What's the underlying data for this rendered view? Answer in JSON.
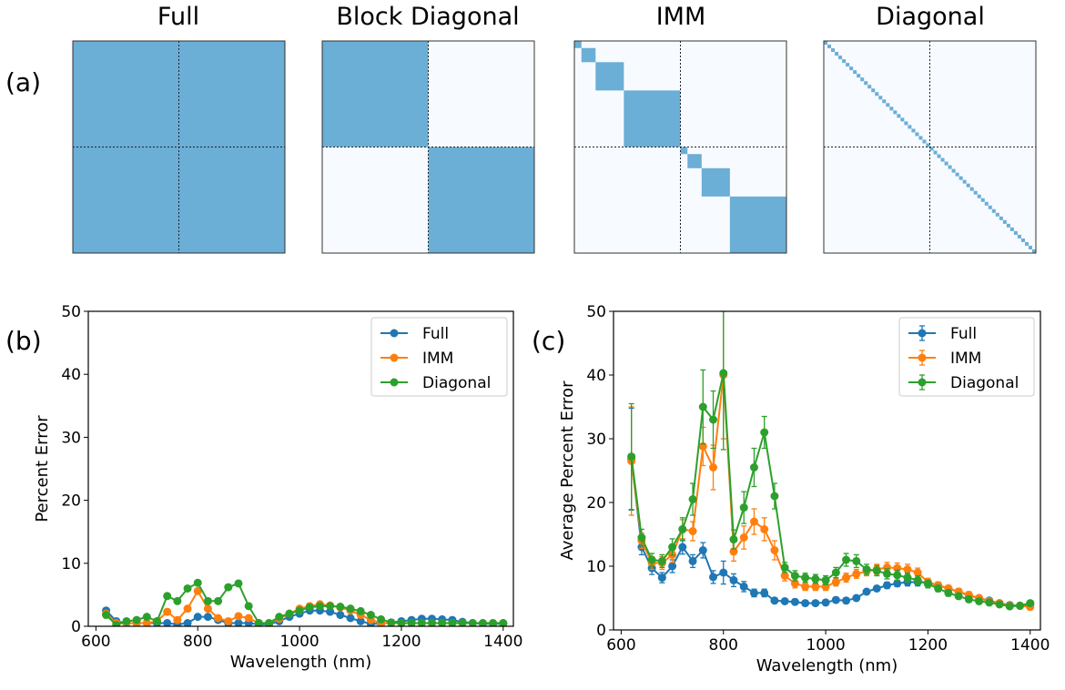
{
  "panel_labels": {
    "a": "(a)",
    "b": "(b)",
    "c": "(c)"
  },
  "matrices": [
    {
      "title": "Full",
      "pattern": "full",
      "blocks": [
        1
      ]
    },
    {
      "title": "Block Diagonal",
      "pattern": "block",
      "blocks": [
        1,
        1
      ]
    },
    {
      "title": "IMM",
      "pattern": "imm",
      "blocks": [
        1,
        2,
        4,
        8,
        1,
        2,
        4,
        8
      ]
    },
    {
      "title": "Diagonal",
      "pattern": "diag",
      "blocks": []
    }
  ],
  "colors": {
    "Full": "#1f77b4",
    "IMM": "#ff7f0e",
    "Diagonal": "#2ca02c",
    "matrix_fill": "#6baed6",
    "matrix_bg": "#f7fbff"
  },
  "chart_data": [
    {
      "type": "line",
      "panel": "(b)",
      "xlabel": "Wavelength (nm)",
      "ylabel": "Percent Error",
      "xlim": [
        585,
        1420
      ],
      "ylim": [
        0,
        50
      ],
      "xticks": [
        600,
        800,
        1000,
        1200,
        1400
      ],
      "yticks": [
        0,
        10,
        20,
        30,
        40,
        50
      ],
      "legend": "top-right",
      "x": [
        620,
        640,
        660,
        680,
        700,
        720,
        740,
        760,
        780,
        800,
        820,
        840,
        860,
        880,
        900,
        920,
        940,
        960,
        980,
        1000,
        1020,
        1040,
        1060,
        1080,
        1100,
        1120,
        1140,
        1160,
        1180,
        1200,
        1220,
        1240,
        1260,
        1280,
        1300,
        1320,
        1340,
        1360,
        1380,
        1400
      ],
      "series": [
        {
          "name": "Full",
          "values": [
            2.5,
            0.8,
            0.5,
            0.5,
            0.5,
            0.5,
            0.5,
            0.3,
            0.5,
            1.5,
            1.5,
            1.0,
            0.5,
            0.5,
            0.5,
            0.3,
            0.3,
            0.8,
            1.5,
            2.0,
            2.5,
            2.5,
            2.3,
            1.8,
            1.3,
            0.8,
            0.4,
            0.4,
            0.6,
            0.8,
            1.0,
            1.2,
            1.2,
            1.1,
            1.0,
            0.7,
            0.5,
            0.4,
            0.4,
            0.4
          ]
        },
        {
          "name": "IMM",
          "values": [
            2.0,
            0.5,
            0.5,
            0.5,
            0.5,
            0.8,
            2.3,
            1.0,
            2.8,
            5.6,
            2.8,
            1.3,
            0.8,
            1.6,
            1.3,
            0.5,
            0.5,
            1.2,
            2.0,
            2.8,
            3.2,
            3.5,
            3.3,
            3.0,
            2.5,
            1.8,
            1.0,
            0.5,
            0.5,
            0.5,
            0.5,
            0.5,
            0.5,
            0.5,
            0.5,
            0.5,
            0.5,
            0.5,
            0.5,
            0.5
          ]
        },
        {
          "name": "Diagonal",
          "values": [
            1.8,
            0.2,
            0.8,
            1.0,
            1.5,
            0.8,
            4.8,
            4.0,
            6.0,
            6.9,
            4.0,
            4.0,
            6.2,
            6.8,
            3.2,
            0.5,
            0.5,
            1.5,
            2.0,
            2.5,
            3.0,
            3.2,
            3.2,
            3.1,
            2.8,
            2.4,
            1.8,
            1.1,
            0.6,
            0.5,
            0.5,
            0.5,
            0.5,
            0.5,
            0.5,
            0.5,
            0.5,
            0.5,
            0.5,
            0.5
          ]
        }
      ]
    },
    {
      "type": "line",
      "panel": "(c)",
      "xlabel": "Wavelength (nm)",
      "ylabel": "Average Percent Error",
      "xlim": [
        585,
        1420
      ],
      "ylim": [
        0,
        50
      ],
      "xticks": [
        600,
        800,
        1000,
        1200,
        1400
      ],
      "yticks": [
        0,
        10,
        20,
        30,
        40,
        50
      ],
      "legend": "top-right",
      "error_bars": true,
      "x": [
        620,
        640,
        660,
        680,
        700,
        720,
        740,
        760,
        780,
        800,
        820,
        840,
        860,
        880,
        900,
        920,
        940,
        960,
        980,
        1000,
        1020,
        1040,
        1060,
        1080,
        1100,
        1120,
        1140,
        1160,
        1180,
        1200,
        1220,
        1240,
        1260,
        1280,
        1300,
        1320,
        1340,
        1360,
        1380,
        1400
      ],
      "series": [
        {
          "name": "Full",
          "values": [
            26.8,
            13.0,
            9.7,
            8.2,
            10.0,
            13.0,
            10.8,
            12.5,
            8.3,
            9.0,
            7.8,
            6.8,
            5.8,
            5.8,
            4.6,
            4.5,
            4.4,
            4.2,
            4.2,
            4.3,
            4.7,
            4.6,
            5.0,
            6.0,
            6.5,
            7.0,
            7.3,
            7.5,
            7.5,
            7.4,
            7.0,
            6.5,
            6.0,
            5.4,
            5.0,
            4.6,
            4.2,
            3.9,
            3.8,
            4.0
          ],
          "errors": [
            8.0,
            1.2,
            1.0,
            0.8,
            1.0,
            1.1,
            1.0,
            1.2,
            1.0,
            1.8,
            1.0,
            0.8,
            0.6,
            0.6,
            0.4,
            0.4,
            0.4,
            0.4,
            0.4,
            0.4,
            0.4,
            0.4,
            0.4,
            0.4,
            0.4,
            0.5,
            0.5,
            0.6,
            0.6,
            0.5,
            0.5,
            0.4,
            0.4,
            0.4,
            0.4,
            0.4,
            0.3,
            0.3,
            0.3,
            0.3
          ]
        },
        {
          "name": "IMM",
          "values": [
            26.5,
            14.0,
            10.5,
            10.5,
            11.8,
            15.8,
            15.5,
            28.8,
            25.5,
            40.0,
            12.3,
            14.5,
            17.0,
            15.8,
            12.5,
            8.5,
            7.3,
            6.8,
            6.8,
            6.8,
            7.5,
            8.2,
            8.8,
            9.2,
            9.5,
            9.8,
            9.7,
            9.5,
            9.0,
            7.5,
            7.0,
            6.5,
            6.0,
            5.5,
            5.0,
            4.5,
            4.2,
            3.8,
            3.8,
            3.6
          ],
          "errors": [
            8.5,
            1.2,
            1.0,
            1.0,
            1.2,
            1.5,
            1.5,
            3.0,
            3.5,
            10.0,
            1.5,
            1.8,
            2.0,
            1.8,
            1.5,
            0.8,
            0.7,
            0.6,
            0.6,
            0.6,
            0.6,
            0.7,
            0.7,
            0.7,
            0.8,
            0.8,
            0.8,
            0.8,
            0.7,
            0.6,
            0.5,
            0.5,
            0.5,
            0.5,
            0.4,
            0.4,
            0.4,
            0.3,
            0.3,
            0.3
          ]
        },
        {
          "name": "Diagonal",
          "values": [
            27.2,
            14.5,
            11.0,
            10.8,
            13.0,
            15.8,
            20.5,
            35.0,
            33.0,
            40.3,
            14.2,
            19.2,
            25.5,
            31.0,
            21.0,
            9.8,
            8.5,
            8.2,
            8.0,
            7.8,
            9.0,
            11.0,
            10.8,
            9.5,
            9.3,
            8.8,
            8.6,
            8.2,
            7.8,
            7.2,
            6.5,
            5.8,
            5.3,
            4.8,
            4.5,
            4.3,
            4.0,
            3.7,
            3.8,
            4.2
          ],
          "errors": [
            8.3,
            1.3,
            1.0,
            1.0,
            1.3,
            1.8,
            2.5,
            5.8,
            4.5,
            12.0,
            1.5,
            2.5,
            3.0,
            2.5,
            2.0,
            0.8,
            0.8,
            0.7,
            0.7,
            0.7,
            0.8,
            1.0,
            1.0,
            0.8,
            0.8,
            0.8,
            0.8,
            0.7,
            0.7,
            0.6,
            0.5,
            0.5,
            0.4,
            0.4,
            0.4,
            0.4,
            0.4,
            0.3,
            0.3,
            0.3
          ]
        }
      ]
    }
  ]
}
